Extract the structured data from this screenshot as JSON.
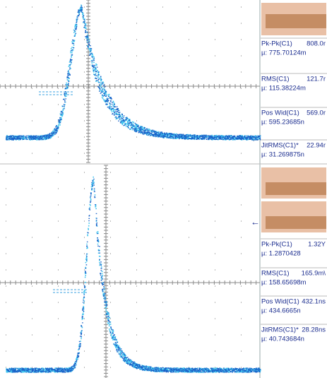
{
  "panels": [
    {
      "measurements": [
        {
          "name": "Pk-Pk(C1)",
          "value": "808.0r",
          "mean": "µ: 775.70124m"
        },
        {
          "name": "RMS(C1)",
          "value": "121.7r",
          "mean": "µ: 115.38224m"
        },
        {
          "name": "Pos Wid(C1)",
          "value": "569.0r",
          "mean": "µ: 595.23685n"
        },
        {
          "name": "JitRMS(C1)*",
          "value": "22.94r",
          "mean": "µ: 31.269875n"
        }
      ]
    },
    {
      "measurements": [
        {
          "name": "Pk-Pk(C1)",
          "value": "1.32Y",
          "mean": "µ: 1.2870428"
        },
        {
          "name": "RMS(C1)",
          "value": "165.9m\\",
          "mean": "µ: 158.65698m"
        },
        {
          "name": "Pos Wid(C1)",
          "value": "432.1ns",
          "mean": "µ: 434.6665n"
        },
        {
          "name": "JitRMS(C1)*",
          "value": "28.28ns",
          "mean": "µ: 40.743684n"
        }
      ]
    }
  ]
}
